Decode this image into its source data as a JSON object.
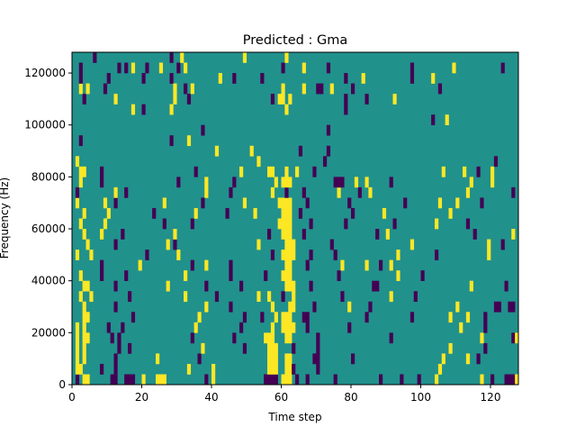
{
  "chart_data": {
    "type": "heatmap",
    "title": "Predicted : Gma",
    "xlabel": "Time step",
    "ylabel": "Frequency (Hz)",
    "xlim": [
      0,
      128
    ],
    "ylim": [
      0,
      128000
    ],
    "n_cols": 128,
    "n_rows": 32,
    "row_height_hz": 4000,
    "xticks": [
      "0",
      "20",
      "40",
      "60",
      "80",
      "100",
      "120"
    ],
    "yticks": [
      "0",
      "20000",
      "40000",
      "60000",
      "80000",
      "100000",
      "120000"
    ],
    "colors": {
      "background": "#21918c",
      "high": "#fde725",
      "low": "#440154"
    },
    "rows": [
      "P1 Y3-4 P11-12 P15-17 Y20 Y24-26 P38 Y40 P55-58 Y60-62 P64 P67 P75 P88 P94 P99 Y104 Y117 P120 P124-126 Y127",
      "Y1-2 P8 P12 Y33 Y40 Y56-58 Y61-62 P63 P70 Y105",
      "Y1 Y3 P12 Y24 P36 Y56-58 Y61-62 P69-70 P80 Y106 Y113 P116",
      "Y1 Y3 P13 P16 Y37 P49 Y56-58 P63 P70 Y108 P118",
      "Y1 Y3-4 P11 P13 P34 P46 Y55-57 Y61-62 P70 P91 Y117 P126 Y127",
      "Y1 Y3 P10 P14 Y35 P48 Y57 Y60-63 P67 P79 Y111 P118",
      "Y3-4 P17 Y36 P49 P54 Y58 Y60-62 P66-67 P84 P97 Y108 Y113 P118",
      "Y3 P12 Y38 P45 Y57 Y62-63 P69 Y79 P85 Y110 P121-122 P125-126",
      "Y2 Y5 P16 Y32 P41 Y53 Y56 P60 Y63 P77 Y91 P98",
      "Y3-4 P12 Y27 P38 P48 Y61-63 P68 P86-87 Y114 P124",
      "Y2 P8 P15 Y32 P45 P55 Y60-62 P76 Y93 P100",
      "P8 Y19 P34 Y38 P45 Y61-62 P67 Y77 Y84 P88 Y91",
      "Y1 Y5 P21 Y30 P57 Y60-63 P68 P75 Y93 P104 Y119",
      "Y4 P12 Y27 P29 Y53 Y61-63 P74 Y97 Y119 P123",
      "Y3 Y8 P14 Y29 P56 Y60-62 P66 P87 Y90 P115 Y126",
      "Y2 Y9 P26 P34 Y59-62 P68 P78 P92 Y104 P113",
      "Y3 Y10 P23 Y35 P44 Y52 Y60-62 P65 P80 Y89 Y108",
      "Y1 Y9 P12 Y26 P37 Y49 Y59-62 P67 P79 P95 Y105 Y110 P117",
      "P1 Y12 P15 Y38 P45 Y57 P61 P66 Y76 P82 Y85 Y113 P126",
      "Y2 P8 P30 Y38 P46 Y58 Y60-62 P75-77 Y81 Y84 P91 Y114 Y120",
      "Y2-3 P8 P35 Y48 Y56-57 Y61 Y64 P69 Y106 Y112 P116 Y120",
      "Y1 Y53 P72 P121",
      "Y41 Y51 P65 P73",
      "P2 P28 Y33",
      "P37 P73",
      "P103 Y107",
      "Y17 P20 Y28 Y61 P78",
      "P3 Y12 Y29 P33 P57 Y59-60 Y62 P78 P84 Y92",
      "Y2 Y4 P9 Y29 P32 Y34 Y60 Y66 P70-71 Y74 P80 P105",
      "P2 P10 P20 P28 Y42 P46 P54 P78 Y83 P97 Y103",
      "P2 P13 P15 Y17 P21 Y25 P30 Y32 P60 Y66 P73 P97 Y109 P123",
      "P6 P28 Y31 Y49 Y61"
    ]
  }
}
